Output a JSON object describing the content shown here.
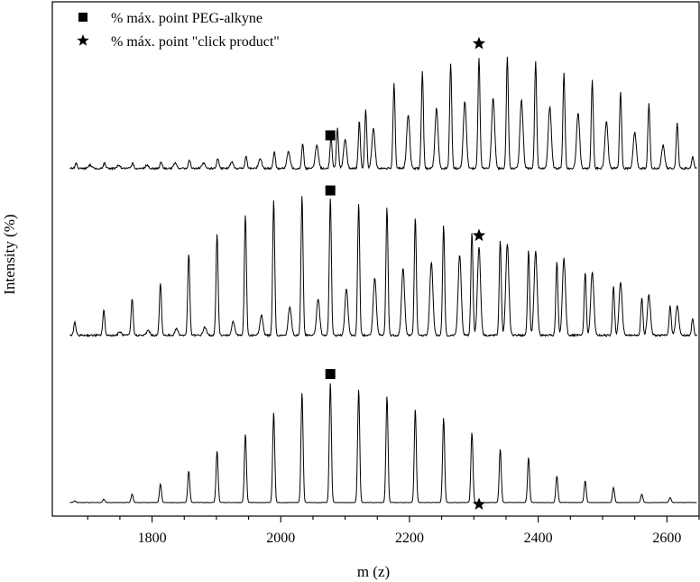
{
  "chart_data": {
    "type": "line",
    "xlabel": "m (z)",
    "ylabel": "Intensity (%)",
    "xlim": [
      1645,
      2650
    ],
    "x_ticks": [
      1800,
      2000,
      2200,
      2400,
      2600
    ],
    "grid": false,
    "legend": {
      "placement": "top-left",
      "entries": [
        {
          "marker": "square",
          "label": "% máx. point PEG-alkyne"
        },
        {
          "marker": "star",
          "label": "% máx. point \"click product\""
        }
      ]
    },
    "series": [
      {
        "peaks_x": [
          1680,
          1725,
          1769,
          1813,
          1857,
          1901,
          1945,
          1989,
          2033,
          2077,
          2121,
          2165,
          2209,
          2253,
          2297,
          2341,
          2385,
          2429,
          2473,
          2517,
          2561,
          2605
        ],
        "peaks_y": [
          1,
          2,
          5,
          11,
          19,
          31,
          41,
          54,
          66,
          72,
          68,
          64,
          56,
          51,
          42,
          32,
          27,
          16,
          13,
          9,
          5,
          3
        ],
        "markers": [
          {
            "type": "square",
            "x": 2077,
            "y": 77
          },
          {
            "type": "star",
            "x": 2308,
            "y": -1
          }
        ]
      },
      {
        "peaks_x": [
          1680,
          1725,
          1769,
          1813,
          1857,
          1901,
          1945,
          1989,
          2033,
          2077,
          2121,
          2165,
          2209,
          2253,
          2297,
          2341,
          2385,
          2429,
          2473,
          2517,
          2561,
          2605,
          2640
        ],
        "peaks_y": [
          8,
          15,
          22,
          31,
          49,
          61,
          72,
          81,
          84,
          83,
          79,
          77,
          71,
          66,
          62,
          57,
          51,
          44,
          38,
          30,
          23,
          18,
          10
        ],
        "secondary_x": [
          1750,
          1794,
          1838,
          1882,
          1926,
          1970,
          2014,
          2058,
          2102,
          2146,
          2190,
          2234,
          2278,
          2308,
          2352,
          2396,
          2440,
          2484,
          2528,
          2572,
          2616
        ],
        "secondary_y": [
          2,
          3,
          4,
          5,
          8,
          12,
          17,
          22,
          28,
          34,
          40,
          44,
          48,
          53,
          55,
          50,
          46,
          38,
          32,
          24,
          18
        ],
        "markers": [
          {
            "type": "square",
            "x": 2077,
            "y": 87
          },
          {
            "type": "star",
            "x": 2308,
            "y": 60
          }
        ]
      },
      {
        "peaks_x": [
          1682,
          1726,
          1770,
          1814,
          1858,
          1902,
          1946,
          1990,
          2034,
          2078,
          2088,
          2122,
          2132,
          2176,
          2220,
          2264,
          2308,
          2352,
          2396,
          2440,
          2484,
          2528,
          2572,
          2616,
          2640
        ],
        "peaks_y": [
          3,
          3,
          3,
          4,
          5,
          6,
          7,
          10,
          15,
          19,
          24,
          28,
          35,
          51,
          58,
          63,
          66,
          67,
          64,
          57,
          53,
          46,
          39,
          27,
          7
        ],
        "secondary_x": [
          1704,
          1748,
          1792,
          1836,
          1880,
          1924,
          1968,
          2012,
          2056,
          2100,
          2144,
          2198,
          2242,
          2286,
          2330,
          2374,
          2418,
          2462,
          2506,
          2550,
          2594
        ],
        "secondary_y": [
          2,
          2,
          2,
          3,
          3,
          4,
          6,
          10,
          14,
          17,
          24,
          32,
          36,
          40,
          42,
          41,
          37,
          33,
          28,
          22,
          14
        ],
        "markers": [
          {
            "type": "square",
            "x": 2077,
            "y": 20
          },
          {
            "type": "star",
            "x": 2308,
            "y": 75
          }
        ]
      }
    ]
  }
}
